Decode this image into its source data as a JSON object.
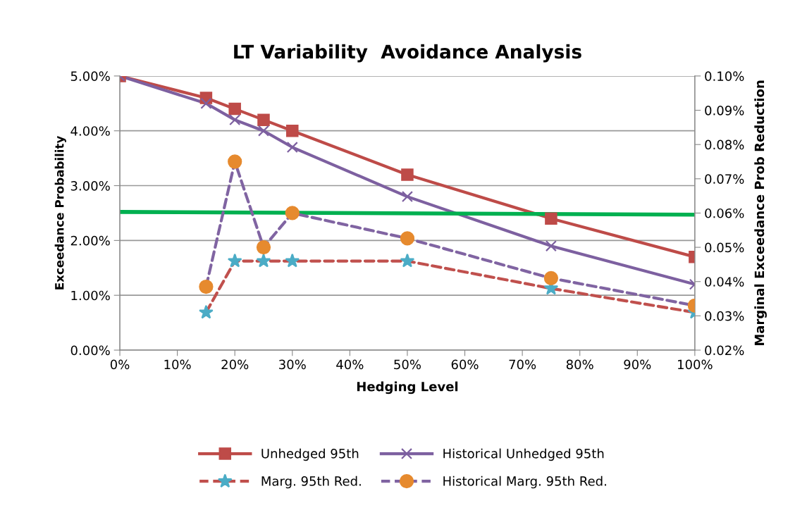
{
  "chart_data": {
    "type": "line",
    "title": "LT Variability  Avoidance Analysis",
    "xlabel": "Hedging Level",
    "ylabel": "Exceedance Probability",
    "y2label": "Marginal Exceedance Prob Reduction",
    "xlim": [
      0,
      100
    ],
    "xticks": [
      {
        "value": 0,
        "label": "0%"
      },
      {
        "value": 10,
        "label": "10%"
      },
      {
        "value": 20,
        "label": "20%"
      },
      {
        "value": 30,
        "label": "30%"
      },
      {
        "value": 40,
        "label": "40%"
      },
      {
        "value": 50,
        "label": "50%"
      },
      {
        "value": 60,
        "label": "60%"
      },
      {
        "value": 70,
        "label": "70%"
      },
      {
        "value": 80,
        "label": "80%"
      },
      {
        "value": 90,
        "label": "90%"
      },
      {
        "value": 100,
        "label": "100%"
      }
    ],
    "ylim": [
      0,
      5
    ],
    "yticks": [
      {
        "value": 0,
        "label": "0.00%"
      },
      {
        "value": 1,
        "label": "1.00%"
      },
      {
        "value": 2,
        "label": "2.00%"
      },
      {
        "value": 3,
        "label": "3.00%"
      },
      {
        "value": 4,
        "label": "4.00%"
      },
      {
        "value": 5,
        "label": "5.00%"
      }
    ],
    "y2lim": [
      0.02,
      0.1
    ],
    "y2ticks": [
      {
        "value": 0.02,
        "label": "0.02%"
      },
      {
        "value": 0.03,
        "label": "0.03%"
      },
      {
        "value": 0.04,
        "label": "0.04%"
      },
      {
        "value": 0.05,
        "label": "0.05%"
      },
      {
        "value": 0.06,
        "label": "0.06%"
      },
      {
        "value": 0.07,
        "label": "0.07%"
      },
      {
        "value": 0.08,
        "label": "0.08%"
      },
      {
        "value": 0.09,
        "label": "0.09%"
      },
      {
        "value": 0.1,
        "label": "0.10%"
      }
    ],
    "grid": "y",
    "legend": "bottom",
    "series": [
      {
        "name": "Unhedged 95th",
        "color": "#be4b48",
        "marker": "square",
        "line_style": "solid",
        "x": [
          0,
          15,
          20,
          25,
          30,
          50,
          75,
          100
        ],
        "values": [
          5.0,
          4.6,
          4.4,
          4.2,
          4.0,
          3.2,
          2.4,
          1.7
        ]
      },
      {
        "name": "Historical Unhedged 95th",
        "color": "#7d60a0",
        "marker": "cross",
        "line_style": "solid",
        "x": [
          0,
          15,
          20,
          25,
          30,
          50,
          75,
          100
        ],
        "values": [
          5.0,
          4.5,
          4.2,
          4.0,
          3.7,
          2.8,
          1.9,
          1.2
        ]
      },
      {
        "name": "Marg. 95th Red.",
        "color": "#c0504d",
        "colors": [
          "#4bacc6",
          "#4bacc6",
          "#4bacc6",
          "#4bacc6",
          "#4bacc6",
          "#4bacc6",
          "#4bacc6"
        ],
        "marker": "star",
        "line_style": "dashed",
        "axis": "y2",
        "x": [
          15,
          20,
          25,
          30,
          50,
          75,
          100
        ],
        "values": [
          0.031,
          0.046,
          0.046,
          0.046,
          0.046,
          0.038,
          0.031
        ]
      },
      {
        "name": "Historical Marg. 95th Red.",
        "color": "#8064a2",
        "colors": [
          "#e68a2e",
          "#e68a2e",
          "#e68a2e",
          "#e68a2e",
          "#e68a2e",
          "#e68a2e",
          "#e68a2e"
        ],
        "marker": "circle",
        "line_style": "dashed",
        "axis": "y2",
        "x": [
          15,
          20,
          25,
          30,
          50,
          75,
          100
        ],
        "values": [
          0.0385,
          0.075,
          0.05,
          0.06,
          0.0526,
          0.041,
          0.033
        ]
      },
      {
        "color": "#00b050",
        "marker": "none",
        "line_style": "solid",
        "x": [
          0,
          100
        ],
        "values": [
          2.52,
          2.47
        ]
      }
    ]
  }
}
